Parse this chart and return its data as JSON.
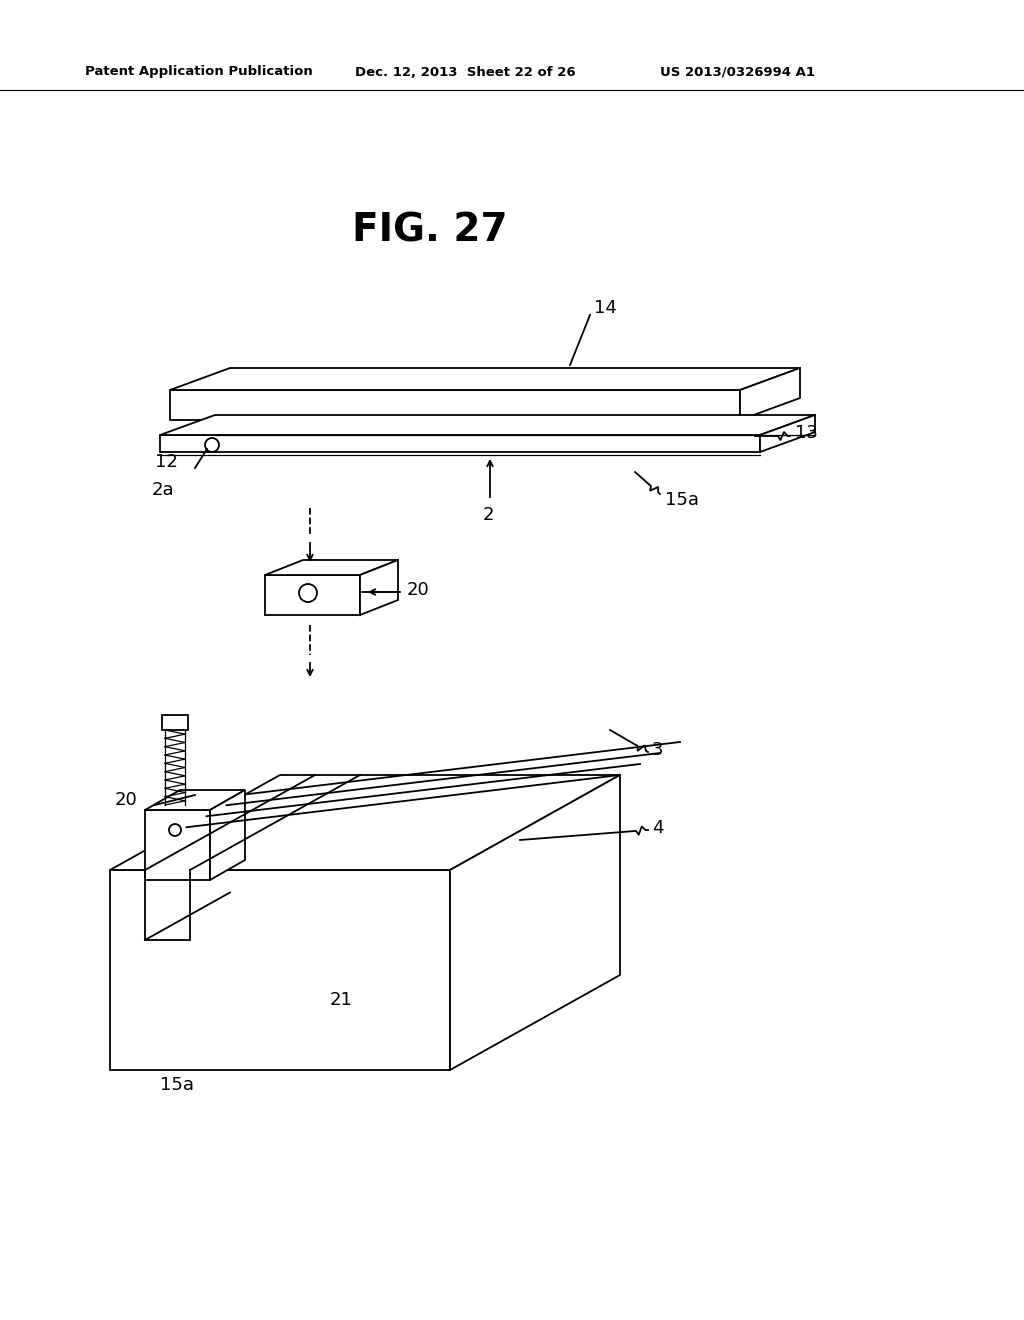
{
  "bg_color": "#ffffff",
  "line_color": "#000000",
  "header_text": "Patent Application Publication",
  "header_date": "Dec. 12, 2013  Sheet 22 of 26",
  "header_patent": "US 2013/0326994 A1",
  "fig_title": "FIG. 27"
}
